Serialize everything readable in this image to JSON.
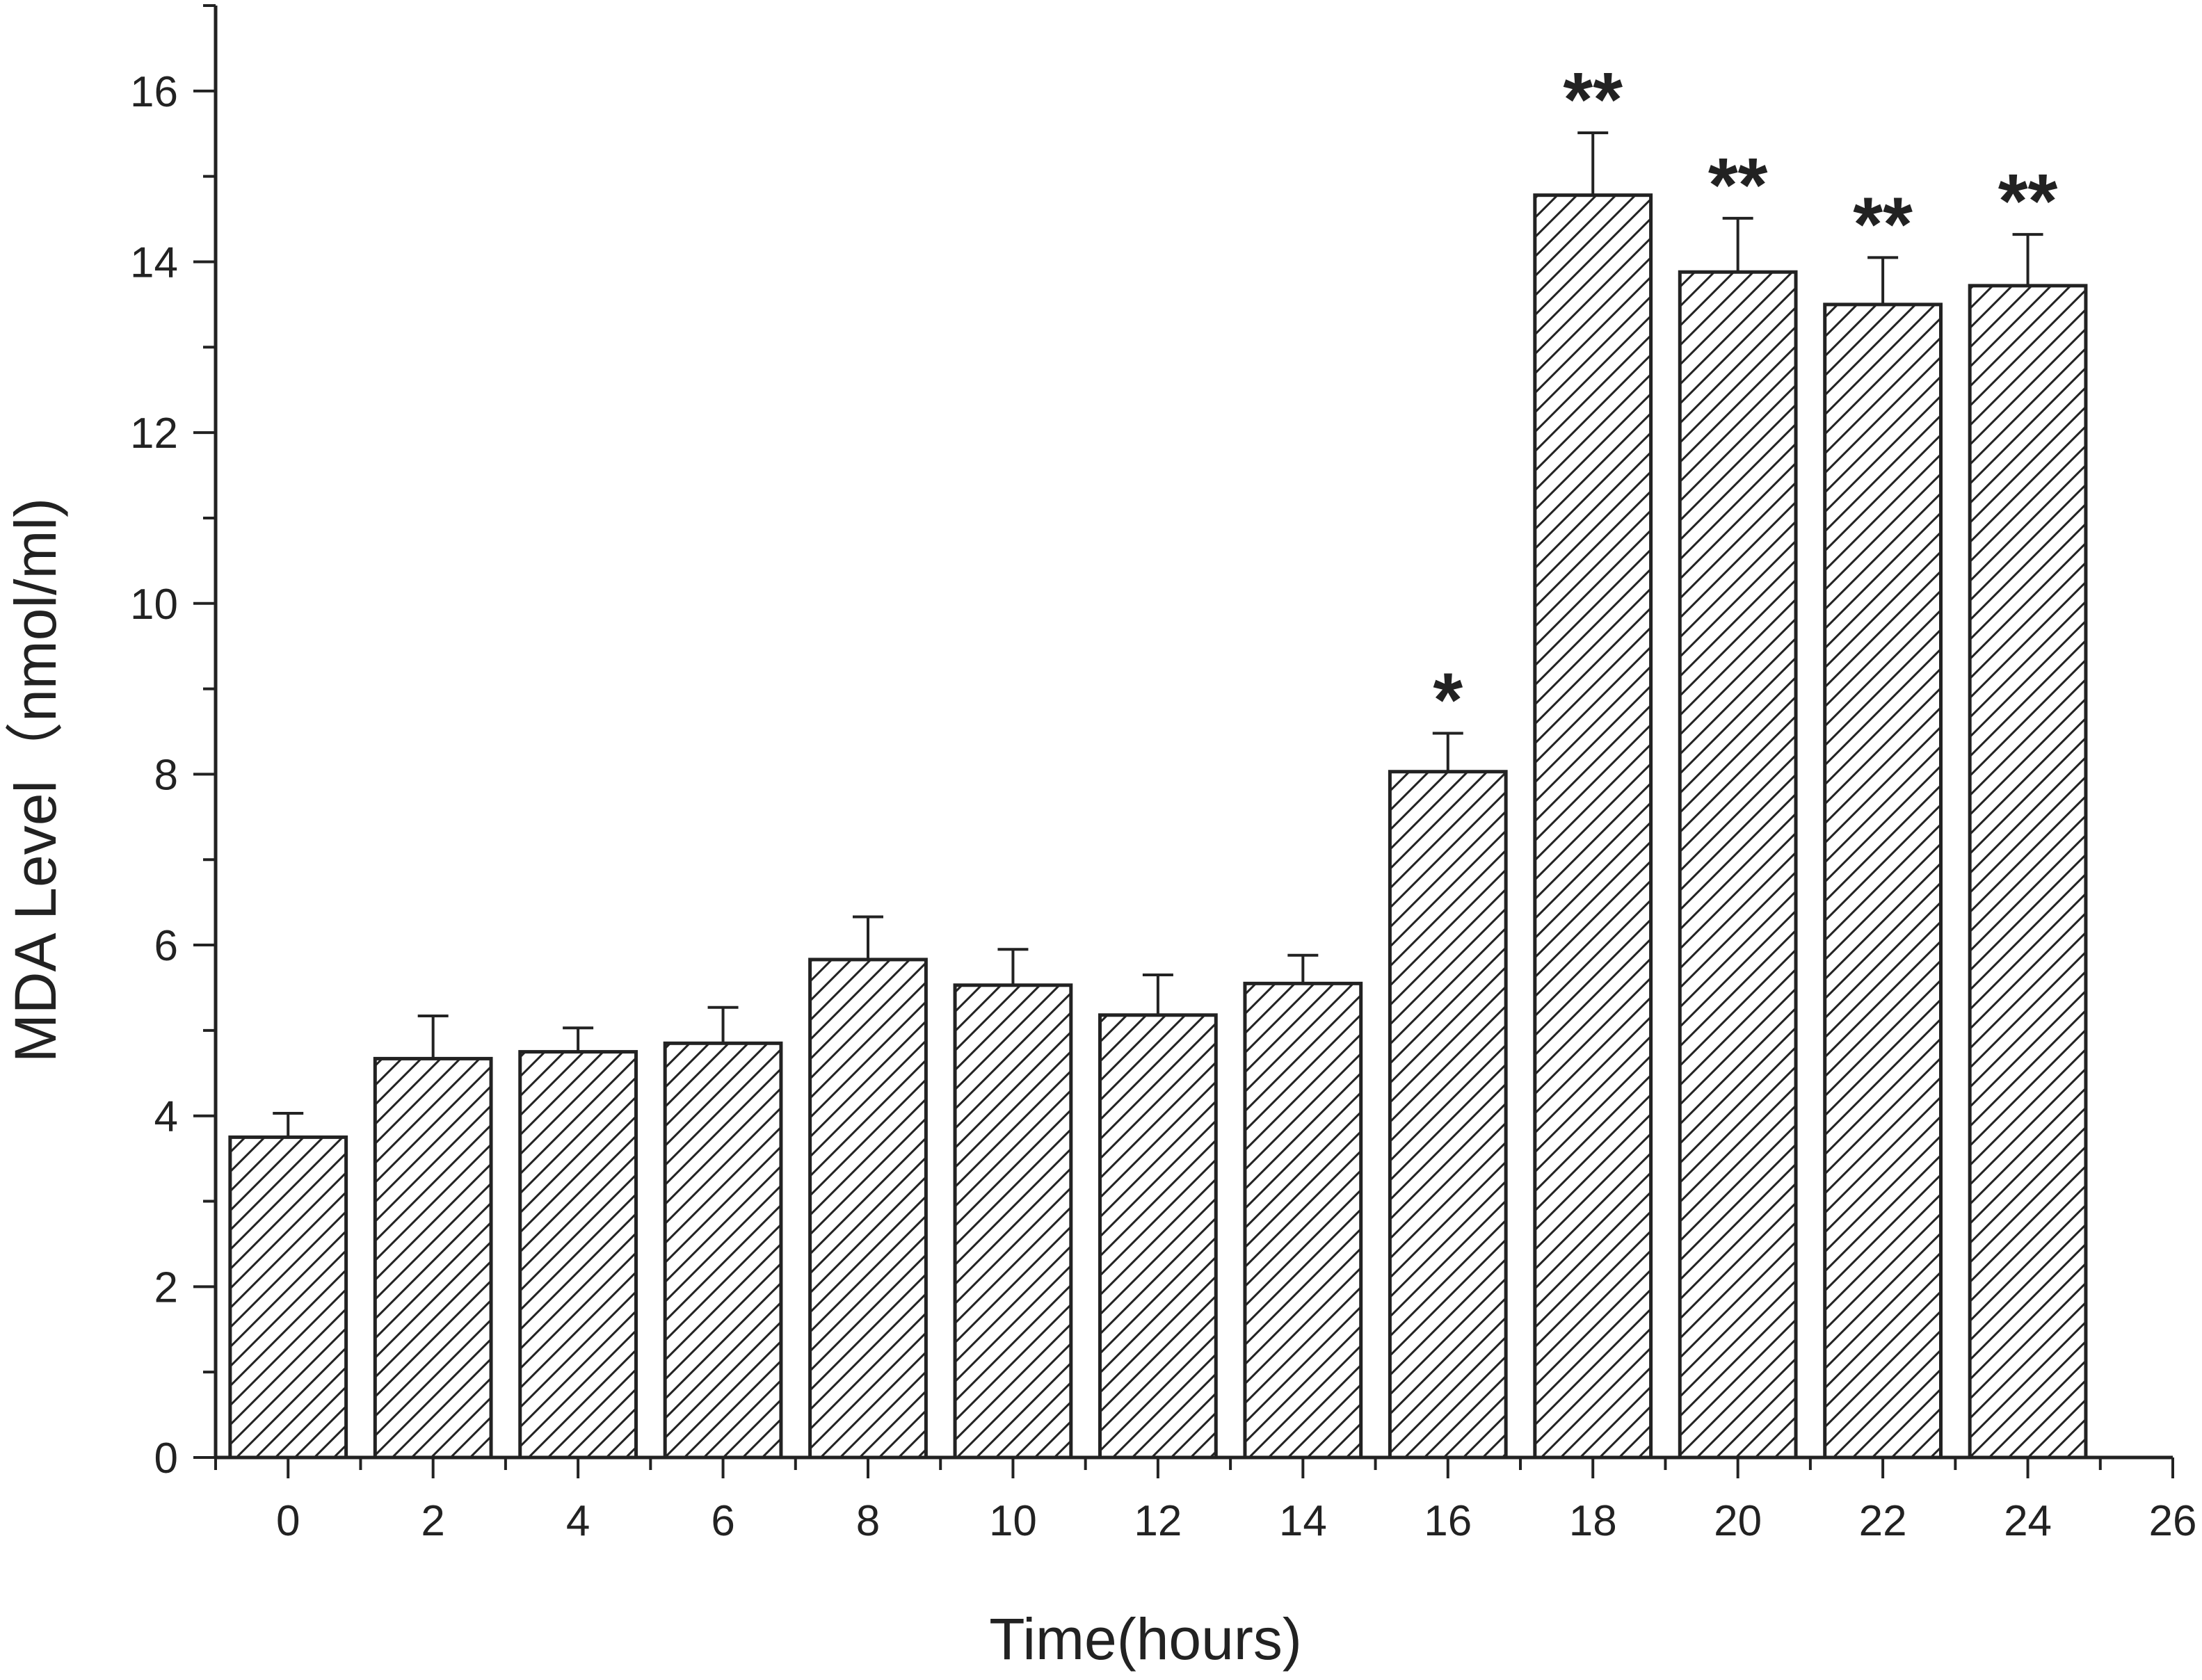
{
  "chart_data": {
    "type": "bar",
    "title": "",
    "xlabel": "Time(hours)",
    "ylabel": "MDA Level（nmol/ml)",
    "x_ticks": [
      "0",
      "2",
      "4",
      "6",
      "8",
      "10",
      "12",
      "14",
      "16",
      "18",
      "20",
      "22",
      "24",
      "26"
    ],
    "y_ticks": [
      "0",
      "2",
      "4",
      "6",
      "8",
      "10",
      "12",
      "14",
      "16"
    ],
    "xlim": [
      -1,
      26
    ],
    "ylim": [
      0,
      17
    ],
    "grid": false,
    "legend": "none",
    "bar_fill": "diagonal hatch",
    "bar_color": "#222222",
    "categories": [
      "0",
      "2",
      "4",
      "6",
      "8",
      "10",
      "12",
      "14",
      "16",
      "18",
      "20",
      "22",
      "24"
    ],
    "x": [
      0,
      2,
      4,
      6,
      8,
      10,
      12,
      14,
      16,
      18,
      20,
      22,
      24
    ],
    "values": [
      3.75,
      4.67,
      4.75,
      4.85,
      5.83,
      5.53,
      5.18,
      5.55,
      8.03,
      14.78,
      13.88,
      13.5,
      13.72
    ],
    "error": [
      0.28,
      0.5,
      0.28,
      0.42,
      0.5,
      0.42,
      0.47,
      0.33,
      0.45,
      0.73,
      0.63,
      0.55,
      0.6
    ],
    "annotations": [
      "",
      "",
      "",
      "",
      "",
      "",
      "",
      "",
      "*",
      "**",
      "**",
      "**",
      "**"
    ]
  }
}
